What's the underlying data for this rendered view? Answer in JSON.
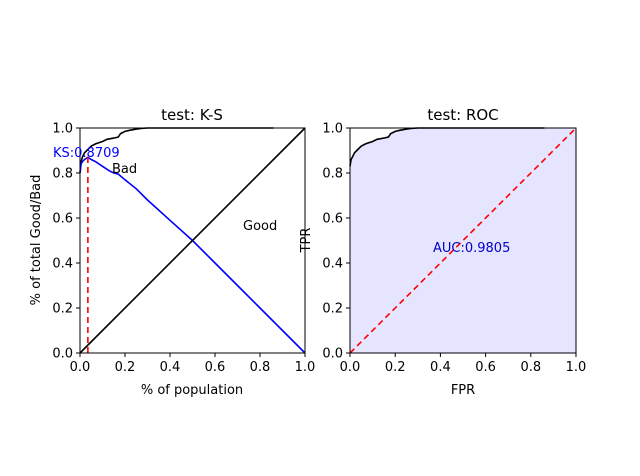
{
  "chart_data": [
    {
      "type": "line",
      "title": "test: K-S",
      "xlabel": "% of population",
      "ylabel": "% of total Good/Bad",
      "xlim": [
        0,
        1
      ],
      "ylim": [
        0,
        1
      ],
      "xticks": [
        "0.0",
        "0.2",
        "0.4",
        "0.6",
        "0.8",
        "1.0"
      ],
      "yticks": [
        "0.0",
        "0.2",
        "0.4",
        "0.6",
        "0.8",
        "1.0"
      ],
      "annotations": {
        "ks_label": "KS:0.8709",
        "bad_label": "Bad",
        "good_label": "Good"
      },
      "ks_x": 0.035,
      "ks_value": 0.8709,
      "colors": {
        "bad": "#000000",
        "ks": "#0000ff",
        "diag": "#000000",
        "ks_line": "#ff0000"
      },
      "series": [
        {
          "key": "bad",
          "x": [
            0.0,
            0.005,
            0.01,
            0.02,
            0.03,
            0.035,
            0.05,
            0.07,
            0.1,
            0.12,
            0.15,
            0.17,
            0.18,
            0.2,
            0.22,
            0.25,
            0.27,
            0.3,
            0.35,
            0.4,
            0.5,
            0.6,
            0.7,
            0.8,
            0.86
          ],
          "y": [
            0.8,
            0.85,
            0.87,
            0.89,
            0.9,
            0.905,
            0.92,
            0.93,
            0.94,
            0.95,
            0.955,
            0.96,
            0.975,
            0.985,
            0.99,
            0.995,
            0.998,
            1.0,
            1.0,
            1.0,
            1.0,
            1.0,
            1.0,
            1.0,
            1.0
          ]
        },
        {
          "key": "ks",
          "x": [
            0.0,
            0.005,
            0.01,
            0.02,
            0.035,
            0.05,
            0.07,
            0.1,
            0.13,
            0.15,
            0.17,
            0.2,
            0.25,
            0.3,
            0.4,
            0.5,
            0.6,
            0.7,
            0.8,
            0.86,
            0.87,
            0.9,
            1.0
          ],
          "y": [
            0.8,
            0.84,
            0.85,
            0.86,
            0.87,
            0.86,
            0.85,
            0.83,
            0.81,
            0.8,
            0.795,
            0.77,
            0.73,
            0.68,
            0.59,
            0.5,
            0.4,
            0.3,
            0.2,
            0.14,
            0.13,
            0.1,
            0.0
          ]
        },
        {
          "key": "diag",
          "x": [
            0,
            1
          ],
          "y": [
            0,
            1
          ]
        }
      ]
    },
    {
      "type": "area",
      "title": "test: ROC",
      "xlabel": "FPR",
      "ylabel": "TPR",
      "xlim": [
        0,
        1
      ],
      "ylim": [
        0,
        1
      ],
      "xticks": [
        "0.0",
        "0.2",
        "0.4",
        "0.6",
        "0.8",
        "1.0"
      ],
      "yticks": [
        "0.0",
        "0.2",
        "0.4",
        "0.6",
        "0.8",
        "1.0"
      ],
      "annotations": {
        "auc_label": "AUC:0.9805"
      },
      "colors": {
        "roc": "#000000",
        "fill": "#e5e5ff",
        "diag": "#ff0000",
        "auc": "#0000cc"
      },
      "series": [
        {
          "key": "roc",
          "x": [
            0.0,
            0.005,
            0.01,
            0.02,
            0.03,
            0.05,
            0.07,
            0.1,
            0.12,
            0.15,
            0.17,
            0.18,
            0.2,
            0.22,
            0.25,
            0.27,
            0.3,
            0.35,
            0.4,
            0.5,
            0.6,
            0.7,
            0.8,
            0.86
          ],
          "y": [
            0.83,
            0.86,
            0.87,
            0.89,
            0.9,
            0.92,
            0.93,
            0.94,
            0.95,
            0.955,
            0.96,
            0.975,
            0.985,
            0.99,
            0.995,
            0.998,
            1.0,
            1.0,
            1.0,
            1.0,
            1.0,
            1.0,
            1.0,
            1.0
          ]
        },
        {
          "key": "diag",
          "x": [
            0,
            1
          ],
          "y": [
            0,
            1
          ]
        }
      ]
    }
  ]
}
